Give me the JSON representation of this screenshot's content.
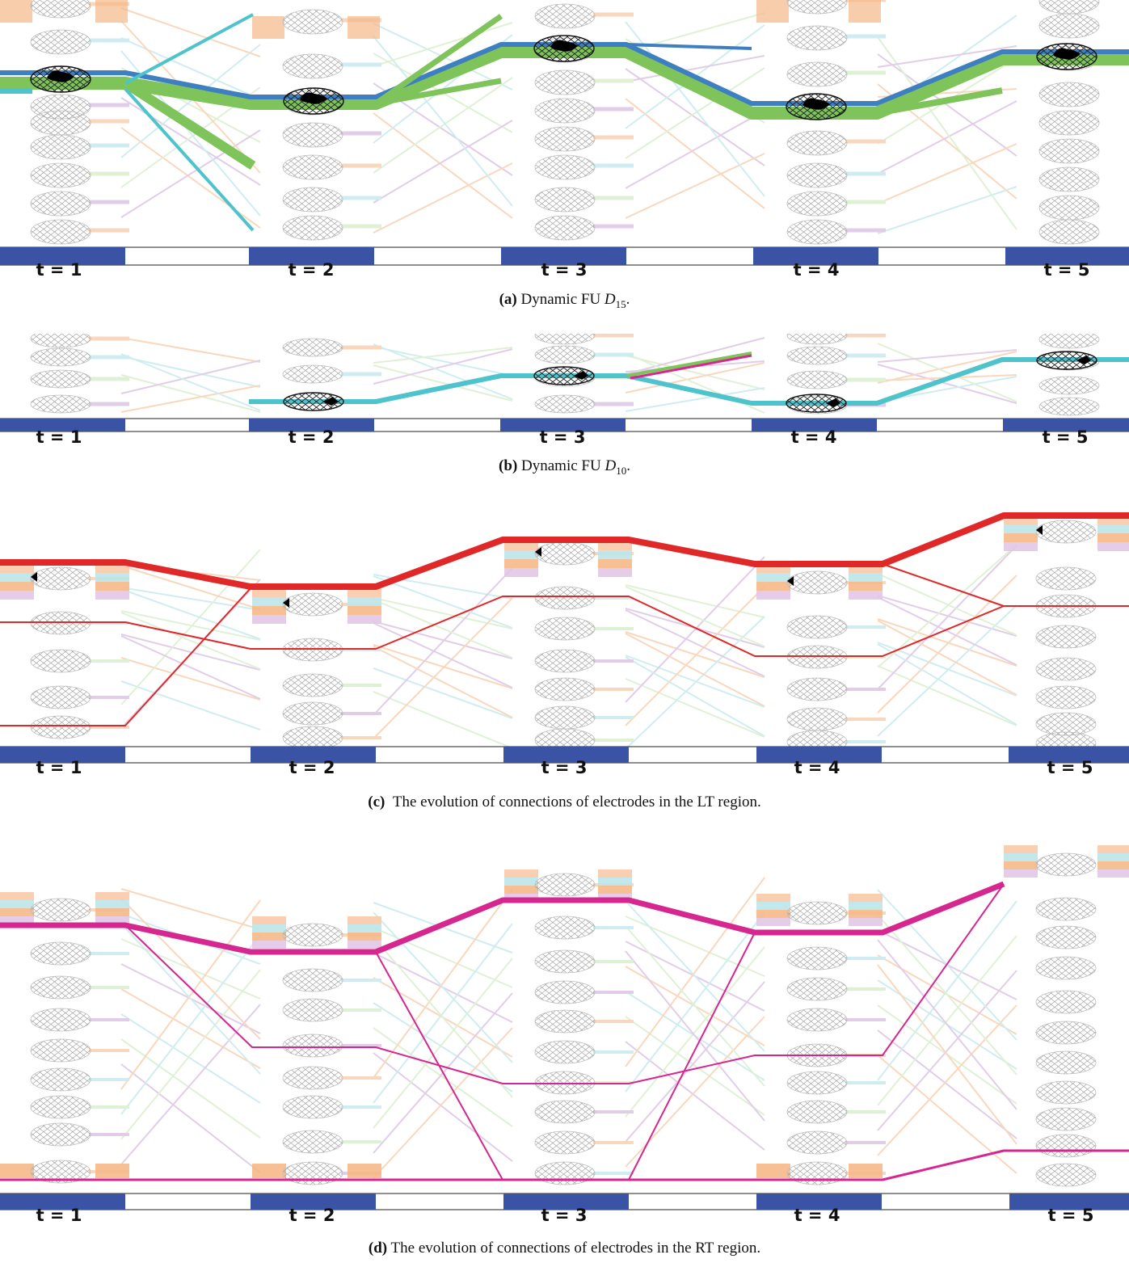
{
  "colors": {
    "timeline_fill": "#3a53a4",
    "blue": "#3d7fc1",
    "green": "#7ec45a",
    "cyan": "#4fc3cc",
    "red": "#e02828",
    "magenta": "#d6268f",
    "orange_faint": "#f5b888",
    "cyan_faint": "#a9dfe4",
    "green_faint": "#c6e6b4",
    "purple_faint": "#c9a6d6"
  },
  "timeline_labels": [
    "t = 1",
    "t = 2",
    "t = 3",
    "t = 4",
    "t = 5"
  ],
  "panels": [
    {
      "id": "a",
      "label": "(a)",
      "caption_text": "Dynamic FU ",
      "var": "D",
      "sub": "15",
      "suffix": "."
    },
    {
      "id": "b",
      "label": "(b)",
      "caption_text": "Dynamic FU ",
      "var": "D",
      "sub": "10",
      "suffix": "."
    },
    {
      "id": "c",
      "label": "(c)",
      "caption_text": "The evolution of connections of electrodes in the LT region.",
      "var": "",
      "sub": "",
      "suffix": ""
    },
    {
      "id": "d",
      "label": "(d)",
      "caption_text": "The evolution of connections of electrodes in the RT region.",
      "var": "",
      "sub": "",
      "suffix": ""
    }
  ]
}
